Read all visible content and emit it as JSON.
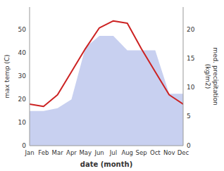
{
  "chart_data": {
    "type": "line",
    "categories": [
      "Jan",
      "Feb",
      "Mar",
      "Apr",
      "May",
      "Jun",
      "Jul",
      "Aug",
      "Sep",
      "Oct",
      "Nov",
      "Dec"
    ],
    "series": [
      {
        "type": "area",
        "axis": "y2",
        "color": "#c8d0f0",
        "values": [
          6,
          6,
          6.5,
          8,
          17,
          19,
          19,
          16.5,
          16.5,
          16.5,
          9,
          9
        ]
      },
      {
        "type": "line",
        "color": "#cc2222",
        "values": [
          18,
          17,
          22,
          32,
          42,
          51,
          54,
          53,
          42,
          32,
          22,
          18
        ]
      }
    ],
    "xlabel": "date (month)",
    "ylabel": "max temp (C)",
    "y2label": "med. precipitation\n(kg/m2)",
    "ylim": [
      0,
      60
    ],
    "yticks": [
      0,
      10,
      20,
      30,
      40,
      50
    ],
    "y2lim": [
      0,
      24
    ],
    "y2ticks": [
      0,
      5,
      10,
      15,
      20
    ],
    "grid": false
  }
}
